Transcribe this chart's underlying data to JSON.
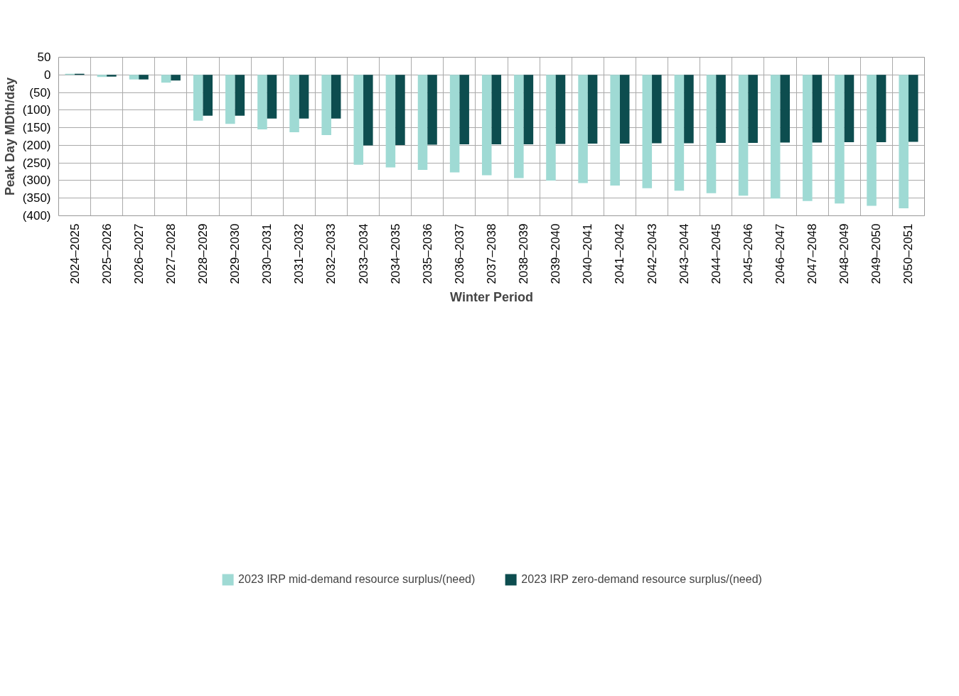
{
  "chart_data": {
    "type": "bar",
    "xlabel": "Winter Period",
    "ylabel": "Peak Day MDth/day",
    "categories": [
      "2024–2025",
      "2025–2026",
      "2026–2027",
      "2027–2028",
      "2028–2029",
      "2029–2030",
      "2030–2031",
      "2031–2032",
      "2032–2033",
      "2033–2034",
      "2034–2035",
      "2035–2036",
      "2036–2037",
      "2037–2038",
      "2038–2039",
      "2039–2040",
      "2040–2041",
      "2041–2042",
      "2042–2043",
      "2043–2044",
      "2044–2045",
      "2045–2046",
      "2046–2047",
      "2047–2048",
      "2048–2049",
      "2049–2050",
      "2050–2051"
    ],
    "series": [
      {
        "name": "2023 IRP mid-demand resource surplus/(need)",
        "color": "#9fdad4",
        "values": [
          3,
          -6,
          -13,
          -22,
          -130,
          -139,
          -155,
          -163,
          -171,
          -255,
          -263,
          -270,
          -277,
          -285,
          -293,
          -300,
          -307,
          -314,
          -322,
          -329,
          -336,
          -343,
          -351,
          -358,
          -365,
          -372,
          -379
        ]
      },
      {
        "name": "2023 IRP zero-demand resource surplus/(need)",
        "color": "#0d4d4f",
        "values": [
          3,
          -5,
          -13,
          -16,
          -116,
          -116,
          -124,
          -124,
          -124,
          -200,
          -199,
          -198,
          -197,
          -197,
          -197,
          -196,
          -195,
          -195,
          -194,
          -194,
          -193,
          -193,
          -192,
          -192,
          -191,
          -191,
          -190
        ]
      }
    ],
    "ylim": [
      -400,
      50
    ],
    "yticks": [
      50,
      0,
      {
        "value": -50,
        "label": "(50)"
      },
      {
        "value": -100,
        "label": "(100)"
      },
      {
        "value": -150,
        "label": "(150)"
      },
      {
        "value": -200,
        "label": "(200)"
      },
      {
        "value": -250,
        "label": "(250)"
      },
      {
        "value": -300,
        "label": "(300)"
      },
      {
        "value": -350,
        "label": "(350)"
      },
      {
        "value": -400,
        "label": "(400)"
      }
    ],
    "grid": true,
    "legend": "bottom"
  }
}
